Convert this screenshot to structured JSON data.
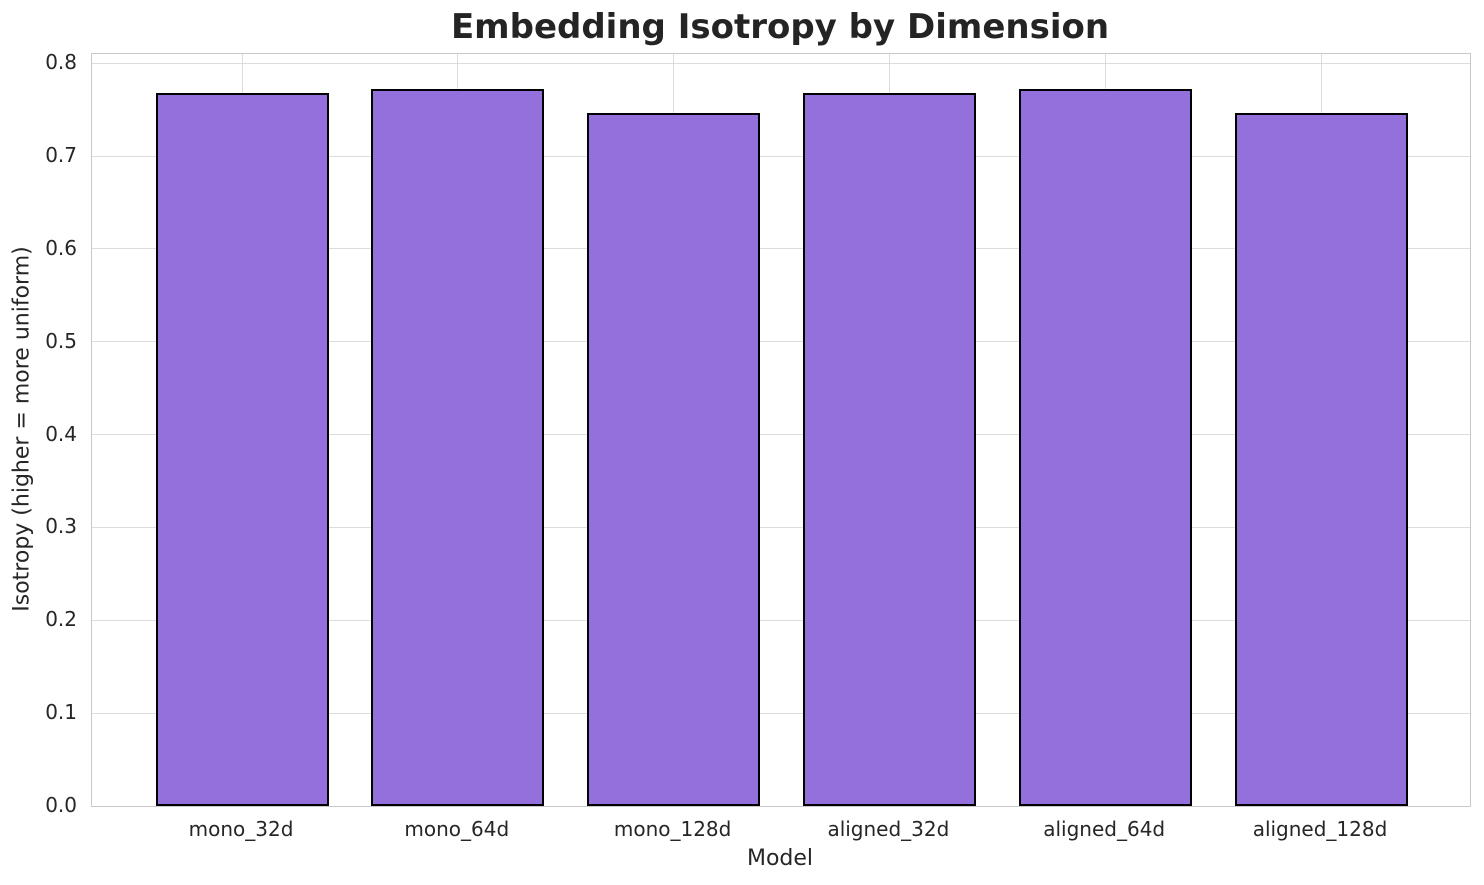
{
  "chart_data": {
    "type": "bar",
    "title": "Embedding Isotropy by Dimension",
    "xlabel": "Model",
    "ylabel": "Isotropy (higher = more uniform)",
    "categories": [
      "mono_32d",
      "mono_64d",
      "mono_128d",
      "aligned_32d",
      "aligned_64d",
      "aligned_128d"
    ],
    "values": [
      0.768,
      0.772,
      0.746,
      0.768,
      0.772,
      0.746
    ],
    "ylim": [
      0,
      0.81
    ],
    "ytick_labels": [
      "0.0",
      "0.1",
      "0.2",
      "0.3",
      "0.4",
      "0.5",
      "0.6",
      "0.7",
      "0.8"
    ],
    "grid": true,
    "legend": "none",
    "colors": {
      "bar_fill": "#9370DB",
      "bar_edge": "#000000",
      "grid_line": "#dcdcdc",
      "axis_spine": "#c9c9c9",
      "text": "#262626",
      "background": "#ffffff"
    }
  }
}
